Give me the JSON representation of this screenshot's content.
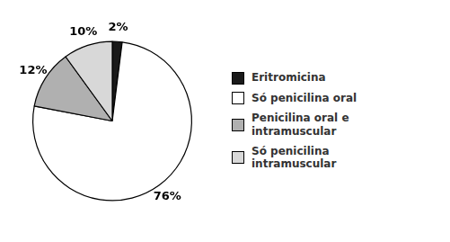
{
  "chart_data": {
    "type": "pie",
    "categories": [
      "Eritromicina",
      "Só penicilina oral",
      "Penicilina oral e\nintramuscular",
      "Só penicilina\nintramuscular"
    ],
    "values": [
      2,
      76,
      12,
      10
    ],
    "value_labels": [
      "2%",
      "76%",
      "12%",
      "10%"
    ],
    "colors": [
      "#1a1a1a",
      "#ffffff",
      "#b0b0b0",
      "#d8d8d8"
    ],
    "data_labels": true,
    "legend": "right"
  }
}
